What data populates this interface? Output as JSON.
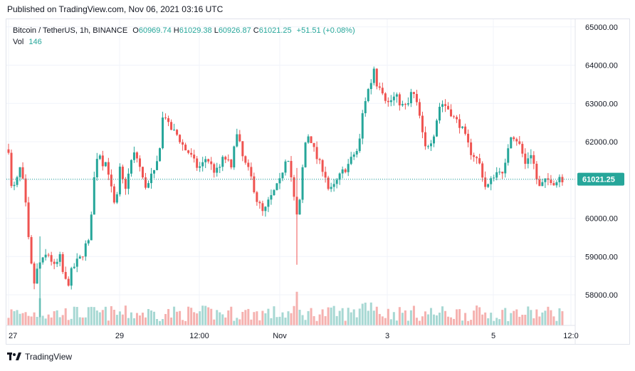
{
  "published": "Published on TradingView.com, Nov 06, 2021 03:16 UTC",
  "legend": {
    "symbol": "Bitcoin / TetherUS, 1h, BINANCE",
    "o_label": "O",
    "o_value": "60969.74",
    "h_label": "H",
    "h_value": "61029.38",
    "l_label": "L",
    "l_value": "60926.87",
    "c_label": "C",
    "c_value": "61021.25",
    "change": "+51.51 (+0.08%)",
    "vol_label": "Vol",
    "vol_value": "146"
  },
  "footer": {
    "brand": "TradingView"
  },
  "colors": {
    "up": "#26a69a",
    "down": "#ef5350",
    "up_vol": "#a7d8d3",
    "down_vol": "#f5b1af",
    "grid": "#f0f3fa",
    "price_line": "#26a69a"
  },
  "chart_data": {
    "type": "candlestick",
    "ylim": [
      57200,
      65200
    ],
    "y_ticks": [
      "65000.00",
      "64000.00",
      "63000.00",
      "62000.00",
      "61000.00",
      "60000.00",
      "59000.00",
      "58000.00"
    ],
    "x_ticks": [
      "27",
      "29",
      "12:00",
      "Nov",
      "3",
      "5",
      "12:0"
    ],
    "last_price": 61021.25,
    "last_price_label": "61021.25",
    "path": [
      [
        0,
        61800
      ],
      [
        2,
        60600
      ],
      [
        5,
        60900
      ],
      [
        9,
        60800
      ],
      [
        16,
        61300
      ],
      [
        22,
        60800
      ],
      [
        26,
        59900
      ],
      [
        30,
        59000
      ],
      [
        36,
        58300
      ],
      [
        42,
        58800
      ],
      [
        48,
        58900
      ],
      [
        55,
        59100
      ],
      [
        60,
        58900
      ],
      [
        65,
        58700
      ],
      [
        72,
        59000
      ],
      [
        78,
        58400
      ],
      [
        84,
        58300
      ],
      [
        88,
        58600
      ],
      [
        91,
        58700
      ],
      [
        97,
        58900
      ],
      [
        103,
        59000
      ],
      [
        108,
        59300
      ],
      [
        112,
        59300
      ],
      [
        116,
        60100
      ],
      [
        120,
        61000
      ],
      [
        124,
        61600
      ],
      [
        128,
        61700
      ],
      [
        133,
        61400
      ],
      [
        138,
        61500
      ],
      [
        142,
        61000
      ],
      [
        146,
        60600
      ],
      [
        150,
        60200
      ],
      [
        154,
        60800
      ],
      [
        157,
        61400
      ],
      [
        160,
        61000
      ],
      [
        165,
        60800
      ],
      [
        170,
        61300
      ],
      [
        175,
        61700
      ],
      [
        180,
        61600
      ],
      [
        185,
        61300
      ],
      [
        190,
        60900
      ],
      [
        195,
        60800
      ],
      [
        200,
        61100
      ],
      [
        206,
        61200
      ],
      [
        212,
        61800
      ],
      [
        216,
        62600
      ],
      [
        220,
        62700
      ],
      [
        225,
        62400
      ],
      [
        230,
        62300
      ],
      [
        236,
        62200
      ],
      [
        242,
        62000
      ],
      [
        248,
        61800
      ],
      [
        254,
        61700
      ],
      [
        260,
        61500
      ],
      [
        266,
        61300
      ],
      [
        272,
        61400
      ],
      [
        278,
        61600
      ],
      [
        284,
        61400
      ],
      [
        290,
        61200
      ],
      [
        296,
        61300
      ],
      [
        302,
        61600
      ],
      [
        308,
        61500
      ],
      [
        314,
        61200
      ],
      [
        318,
        62300
      ],
      [
        324,
        62000
      ],
      [
        330,
        61500
      ],
      [
        336,
        61300
      ],
      [
        342,
        61000
      ],
      [
        348,
        60500
      ],
      [
        354,
        60300
      ],
      [
        358,
        60100
      ],
      [
        364,
        60400
      ],
      [
        370,
        60600
      ],
      [
        376,
        60800
      ],
      [
        382,
        61000
      ],
      [
        388,
        61500
      ],
      [
        392,
        61700
      ],
      [
        396,
        61200
      ],
      [
        400,
        60700
      ],
      [
        404,
        60000
      ],
      [
        408,
        60200
      ],
      [
        412,
        61100
      ],
      [
        416,
        61900
      ],
      [
        420,
        62200
      ],
      [
        426,
        62000
      ],
      [
        432,
        61600
      ],
      [
        438,
        61400
      ],
      [
        444,
        61200
      ],
      [
        450,
        60700
      ],
      [
        456,
        60800
      ],
      [
        462,
        61000
      ],
      [
        468,
        61200
      ],
      [
        474,
        61300
      ],
      [
        480,
        61500
      ],
      [
        486,
        61700
      ],
      [
        492,
        61800
      ],
      [
        496,
        62600
      ],
      [
        500,
        63000
      ],
      [
        504,
        63300
      ],
      [
        510,
        63600
      ],
      [
        514,
        64000
      ],
      [
        518,
        63400
      ],
      [
        522,
        63500
      ],
      [
        526,
        63300
      ],
      [
        530,
        63100
      ],
      [
        534,
        63000
      ],
      [
        538,
        63100
      ],
      [
        544,
        63200
      ],
      [
        550,
        63000
      ],
      [
        556,
        62900
      ],
      [
        562,
        63000
      ],
      [
        566,
        63300
      ],
      [
        570,
        63200
      ],
      [
        576,
        62800
      ],
      [
        580,
        62400
      ],
      [
        584,
        61800
      ],
      [
        588,
        61900
      ],
      [
        592,
        62000
      ],
      [
        596,
        62100
      ],
      [
        600,
        62400
      ],
      [
        604,
        62900
      ],
      [
        610,
        63000
      ],
      [
        616,
        62900
      ],
      [
        620,
        62800
      ],
      [
        626,
        62600
      ],
      [
        632,
        62500
      ],
      [
        638,
        62300
      ],
      [
        642,
        62100
      ],
      [
        646,
        61900
      ],
      [
        650,
        61700
      ],
      [
        656,
        61600
      ],
      [
        662,
        61400
      ],
      [
        666,
        61100
      ],
      [
        670,
        60800
      ],
      [
        676,
        60900
      ],
      [
        680,
        61100
      ],
      [
        686,
        61200
      ],
      [
        690,
        61300
      ],
      [
        694,
        61100
      ],
      [
        698,
        61400
      ],
      [
        702,
        61900
      ],
      [
        706,
        62200
      ],
      [
        712,
        62100
      ],
      [
        716,
        62000
      ],
      [
        720,
        61800
      ],
      [
        726,
        61400
      ],
      [
        730,
        61600
      ],
      [
        734,
        61700
      ],
      [
        738,
        61400
      ],
      [
        742,
        61000
      ],
      [
        746,
        60800
      ],
      [
        750,
        60900
      ],
      [
        756,
        61000
      ],
      [
        762,
        61000
      ],
      [
        768,
        60900
      ],
      [
        774,
        61100
      ],
      [
        778,
        61020
      ]
    ]
  }
}
